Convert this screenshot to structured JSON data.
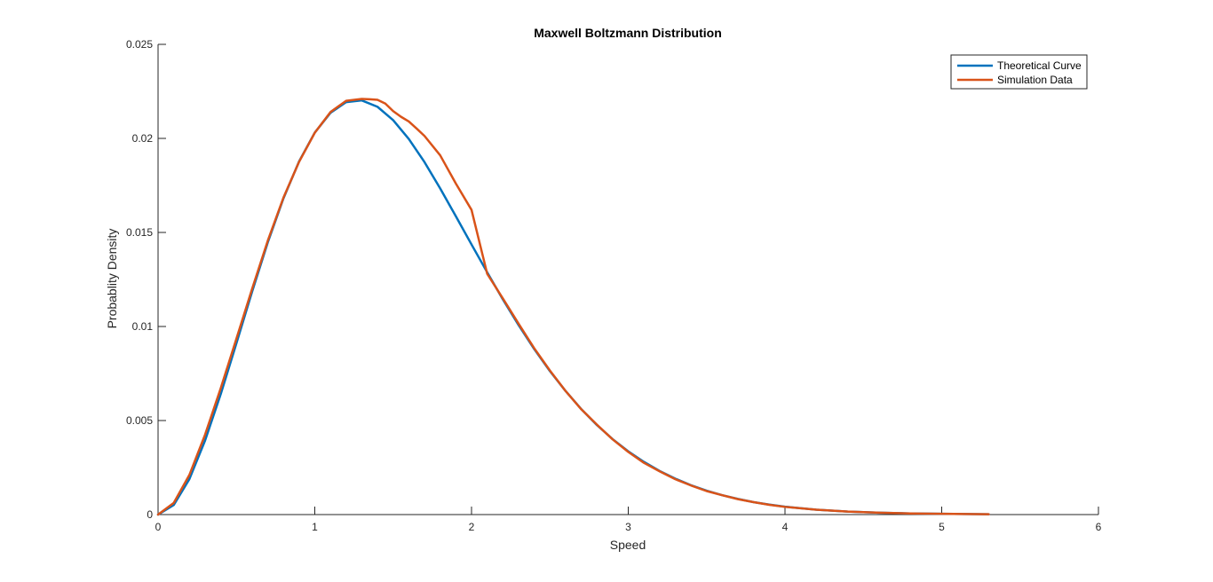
{
  "chart_data": {
    "type": "line",
    "title": "Maxwell Boltzmann Distribution",
    "xlabel": "Speed",
    "ylabel": "Probablity Density",
    "xlim": [
      0,
      6
    ],
    "ylim": [
      0,
      0.025
    ],
    "xticks": [
      0,
      1,
      2,
      3,
      4,
      5,
      6
    ],
    "xtick_labels": [
      "0",
      "1",
      "2",
      "3",
      "4",
      "5",
      "6"
    ],
    "yticks": [
      0,
      0.005,
      0.01,
      0.015,
      0.02,
      0.025
    ],
    "ytick_labels": [
      "0",
      "0.005",
      "0.01",
      "0.015",
      "0.02",
      "0.025"
    ],
    "grid": false,
    "legend_position": "top-right",
    "series": [
      {
        "name": "Theoretical Curve",
        "color": "#0072BD",
        "x": [
          0,
          0.1,
          0.2,
          0.3,
          0.4,
          0.5,
          0.6,
          0.7,
          0.8,
          0.9,
          1.0,
          1.1,
          1.2,
          1.3,
          1.4,
          1.5,
          1.6,
          1.7,
          1.8,
          1.9,
          2.0,
          2.1,
          2.2,
          2.3,
          2.4,
          2.5,
          2.6,
          2.7,
          2.8,
          2.9,
          3.0,
          3.1,
          3.2,
          3.3,
          3.4,
          3.5,
          3.6,
          3.7,
          3.8,
          3.9,
          4.0,
          4.2,
          4.4,
          4.6,
          4.8,
          5.0,
          5.3
        ],
        "y": [
          0,
          0.00051,
          0.00189,
          0.00394,
          0.00641,
          0.00911,
          0.01185,
          0.01447,
          0.01681,
          0.01878,
          0.02031,
          0.02136,
          0.02193,
          0.02202,
          0.02168,
          0.02097,
          0.01997,
          0.01874,
          0.01734,
          0.01586,
          0.01436,
          0.01288,
          0.01144,
          0.01008,
          0.0088,
          0.00763,
          0.00657,
          0.00561,
          0.00476,
          0.00401,
          0.00336,
          0.0028,
          0.00232,
          0.00191,
          0.00156,
          0.00127,
          0.00103,
          0.00083,
          0.00066,
          0.00053,
          0.00042,
          0.00026,
          0.00016,
          0.0001,
          6e-05,
          4e-05,
          2e-05
        ]
      },
      {
        "name": "Simulation Data",
        "color": "#D95319",
        "x": [
          0,
          0.1,
          0.2,
          0.3,
          0.4,
          0.5,
          0.6,
          0.7,
          0.8,
          0.9,
          1.0,
          1.1,
          1.2,
          1.3,
          1.35,
          1.4,
          1.45,
          1.5,
          1.55,
          1.6,
          1.65,
          1.7,
          1.8,
          1.9,
          2.0,
          2.1,
          2.2,
          2.3,
          2.4,
          2.5,
          2.6,
          2.7,
          2.8,
          2.9,
          3.0,
          3.1,
          3.2,
          3.3,
          3.4,
          3.5,
          3.6,
          3.7,
          3.8,
          3.9,
          4.0,
          4.2,
          4.4,
          4.6,
          4.8,
          5.0,
          5.3
        ],
        "y": [
          0,
          0.00062,
          0.00211,
          0.00425,
          0.00672,
          0.00935,
          0.012,
          0.01456,
          0.01685,
          0.01876,
          0.0203,
          0.0214,
          0.022,
          0.0221,
          0.02208,
          0.02205,
          0.02185,
          0.02145,
          0.02115,
          0.0209,
          0.02052,
          0.02013,
          0.0191,
          0.0176,
          0.0162,
          0.0128,
          0.01149,
          0.01015,
          0.00884,
          0.00766,
          0.00657,
          0.0056,
          0.00478,
          0.004,
          0.00333,
          0.00275,
          0.0023,
          0.00188,
          0.00155,
          0.00125,
          0.00103,
          0.00082,
          0.00066,
          0.00052,
          0.00041,
          0.00026,
          0.00016,
          0.0001,
          6e-05,
          4e-05,
          2e-05
        ]
      }
    ]
  }
}
